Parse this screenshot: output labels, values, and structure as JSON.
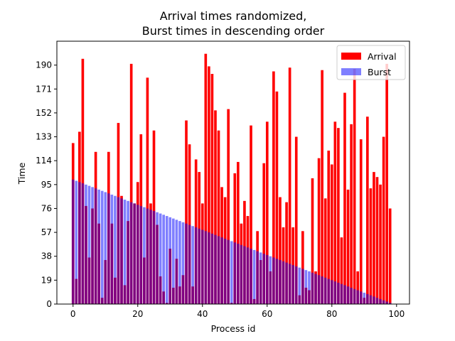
{
  "chart_data": {
    "type": "bar",
    "title_line1": "Arrival times randomized,",
    "title_line2": "Burst times in descending order",
    "xlabel": "Process id",
    "ylabel": "Time",
    "xlim": [
      -5,
      104
    ],
    "ylim": [
      0,
      209
    ],
    "xticks": [
      0,
      20,
      40,
      60,
      80,
      100
    ],
    "yticks": [
      0,
      19,
      38,
      57,
      76,
      95,
      114,
      133,
      152,
      171,
      190
    ],
    "legend": "top-right",
    "grid": false,
    "series": [
      {
        "name": "Arrival",
        "color": "#ff0000",
        "opacity": 1,
        "values": [
          128,
          20,
          137,
          195,
          78,
          37,
          76,
          121,
          64,
          5,
          35,
          121,
          64,
          21,
          144,
          86,
          15,
          66,
          191,
          80,
          97,
          135,
          37,
          180,
          80,
          138,
          63,
          22,
          10,
          1,
          44,
          13,
          36,
          14,
          23,
          146,
          127,
          14,
          115,
          105,
          80,
          199,
          189,
          183,
          154,
          138,
          93,
          85,
          155,
          1,
          104,
          113,
          64,
          82,
          70,
          142,
          4,
          58,
          35,
          112,
          145,
          26,
          185,
          169,
          85,
          61,
          81,
          188,
          61,
          133,
          7,
          58,
          13,
          11,
          100,
          26,
          116,
          186,
          84,
          122,
          111,
          145,
          140,
          53,
          168,
          91,
          143,
          187,
          26,
          131,
          5,
          149,
          92,
          105,
          101,
          95,
          133,
          191,
          76
        ]
      },
      {
        "name": "Burst",
        "color": "#0000ff",
        "opacity": 0.5,
        "values": [
          99,
          98,
          97,
          96,
          95,
          94,
          93,
          92,
          91,
          90,
          89,
          88,
          87,
          86,
          85,
          84,
          83,
          82,
          81,
          80,
          79,
          78,
          77,
          76,
          75,
          74,
          73,
          72,
          71,
          70,
          69,
          68,
          67,
          66,
          65,
          64,
          63,
          62,
          61,
          60,
          59,
          58,
          57,
          56,
          55,
          54,
          53,
          52,
          51,
          50,
          49,
          48,
          47,
          46,
          45,
          44,
          43,
          42,
          41,
          40,
          39,
          38,
          37,
          36,
          35,
          34,
          33,
          32,
          31,
          30,
          29,
          28,
          27,
          26,
          25,
          24,
          23,
          22,
          21,
          20,
          19,
          18,
          17,
          16,
          15,
          14,
          13,
          12,
          11,
          10,
          9,
          8,
          7,
          6,
          5,
          4,
          3,
          2,
          1
        ]
      }
    ]
  }
}
